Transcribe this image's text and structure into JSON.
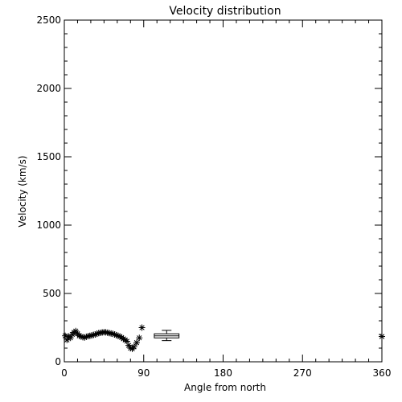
{
  "chart_data": {
    "type": "scatter",
    "title": "Velocity distribution",
    "xlabel": "Angle from north",
    "ylabel": "Velocity (km/s)",
    "xlim": [
      0,
      360
    ],
    "ylim": [
      0,
      2500
    ],
    "xticks": [
      0,
      90,
      180,
      270,
      360
    ],
    "yticks": [
      0,
      500,
      1000,
      1500,
      2000,
      2500
    ],
    "grid": false,
    "marker": "asterisk",
    "series": [
      {
        "points": [
          {
            "x": 1,
            "y": 190
          },
          {
            "x": 3,
            "y": 160
          },
          {
            "x": 5,
            "y": 185
          },
          {
            "x": 7,
            "y": 175
          },
          {
            "x": 9,
            "y": 200
          },
          {
            "x": 11,
            "y": 215
          },
          {
            "x": 13,
            "y": 225
          },
          {
            "x": 15,
            "y": 205
          },
          {
            "x": 17,
            "y": 190
          },
          {
            "x": 19,
            "y": 185
          },
          {
            "x": 21,
            "y": 180
          },
          {
            "x": 23,
            "y": 178
          },
          {
            "x": 25,
            "y": 183
          },
          {
            "x": 27,
            "y": 188
          },
          {
            "x": 29,
            "y": 190
          },
          {
            "x": 31,
            "y": 193
          },
          {
            "x": 33,
            "y": 197
          },
          {
            "x": 35,
            "y": 200
          },
          {
            "x": 37,
            "y": 205
          },
          {
            "x": 39,
            "y": 210
          },
          {
            "x": 41,
            "y": 212
          },
          {
            "x": 43,
            "y": 215
          },
          {
            "x": 45,
            "y": 217
          },
          {
            "x": 47,
            "y": 216
          },
          {
            "x": 49,
            "y": 213
          },
          {
            "x": 51,
            "y": 210
          },
          {
            "x": 53,
            "y": 207
          },
          {
            "x": 55,
            "y": 205
          },
          {
            "x": 57,
            "y": 200
          },
          {
            "x": 59,
            "y": 195
          },
          {
            "x": 61,
            "y": 190
          },
          {
            "x": 63,
            "y": 185
          },
          {
            "x": 65,
            "y": 178
          },
          {
            "x": 67,
            "y": 168
          },
          {
            "x": 69,
            "y": 160
          },
          {
            "x": 71,
            "y": 150
          },
          {
            "x": 73,
            "y": 120
          },
          {
            "x": 75,
            "y": 100
          },
          {
            "x": 77,
            "y": 95
          },
          {
            "x": 79,
            "y": 110
          },
          {
            "x": 82,
            "y": 140
          },
          {
            "x": 85,
            "y": 175
          },
          {
            "x": 88,
            "y": 250
          },
          {
            "x": 360,
            "y": 185
          }
        ]
      }
    ],
    "error_box": {
      "x_range": [
        102,
        130
      ],
      "median": 190,
      "q_low": 175,
      "q_high": 205,
      "whisker_low": 155,
      "whisker_high": 230
    }
  }
}
